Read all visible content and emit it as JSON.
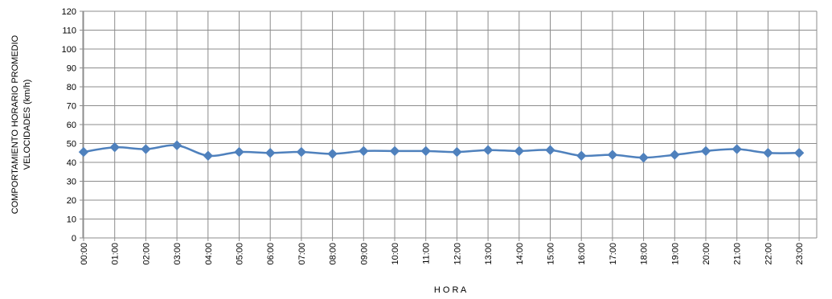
{
  "chart_data": {
    "type": "line",
    "title": "",
    "xlabel": "H O R A",
    "ylabel_line1": "COMPORTAMIENTO  HORARIO PROMEDIO",
    "ylabel_line2": "VELOCIDADES  (km/h)",
    "ylim": [
      0,
      120
    ],
    "ytick_step": 10,
    "yticks": [
      "0",
      "10",
      "20",
      "30",
      "40",
      "50",
      "60",
      "70",
      "80",
      "90",
      "100",
      "110",
      "120"
    ],
    "grid": true,
    "legend": "none",
    "categories": [
      "00:00",
      "01:00",
      "02:00",
      "03:00",
      "04:00",
      "05:00",
      "06:00",
      "07:00",
      "08:00",
      "09:00",
      "10:00",
      "11:00",
      "12:00",
      "13:00",
      "14:00",
      "15:00",
      "16:00",
      "17:00",
      "18:00",
      "19:00",
      "20:00",
      "21:00",
      "22:00",
      "23:00"
    ],
    "series": [
      {
        "color": "#4F81BD",
        "values": [
          45.5,
          48,
          47,
          49,
          43.5,
          45.5,
          45,
          45.5,
          44.5,
          46,
          46,
          46,
          45.5,
          46.5,
          46,
          46.5,
          43.5,
          44,
          42.5,
          44,
          46,
          47,
          45,
          45
        ]
      }
    ]
  }
}
